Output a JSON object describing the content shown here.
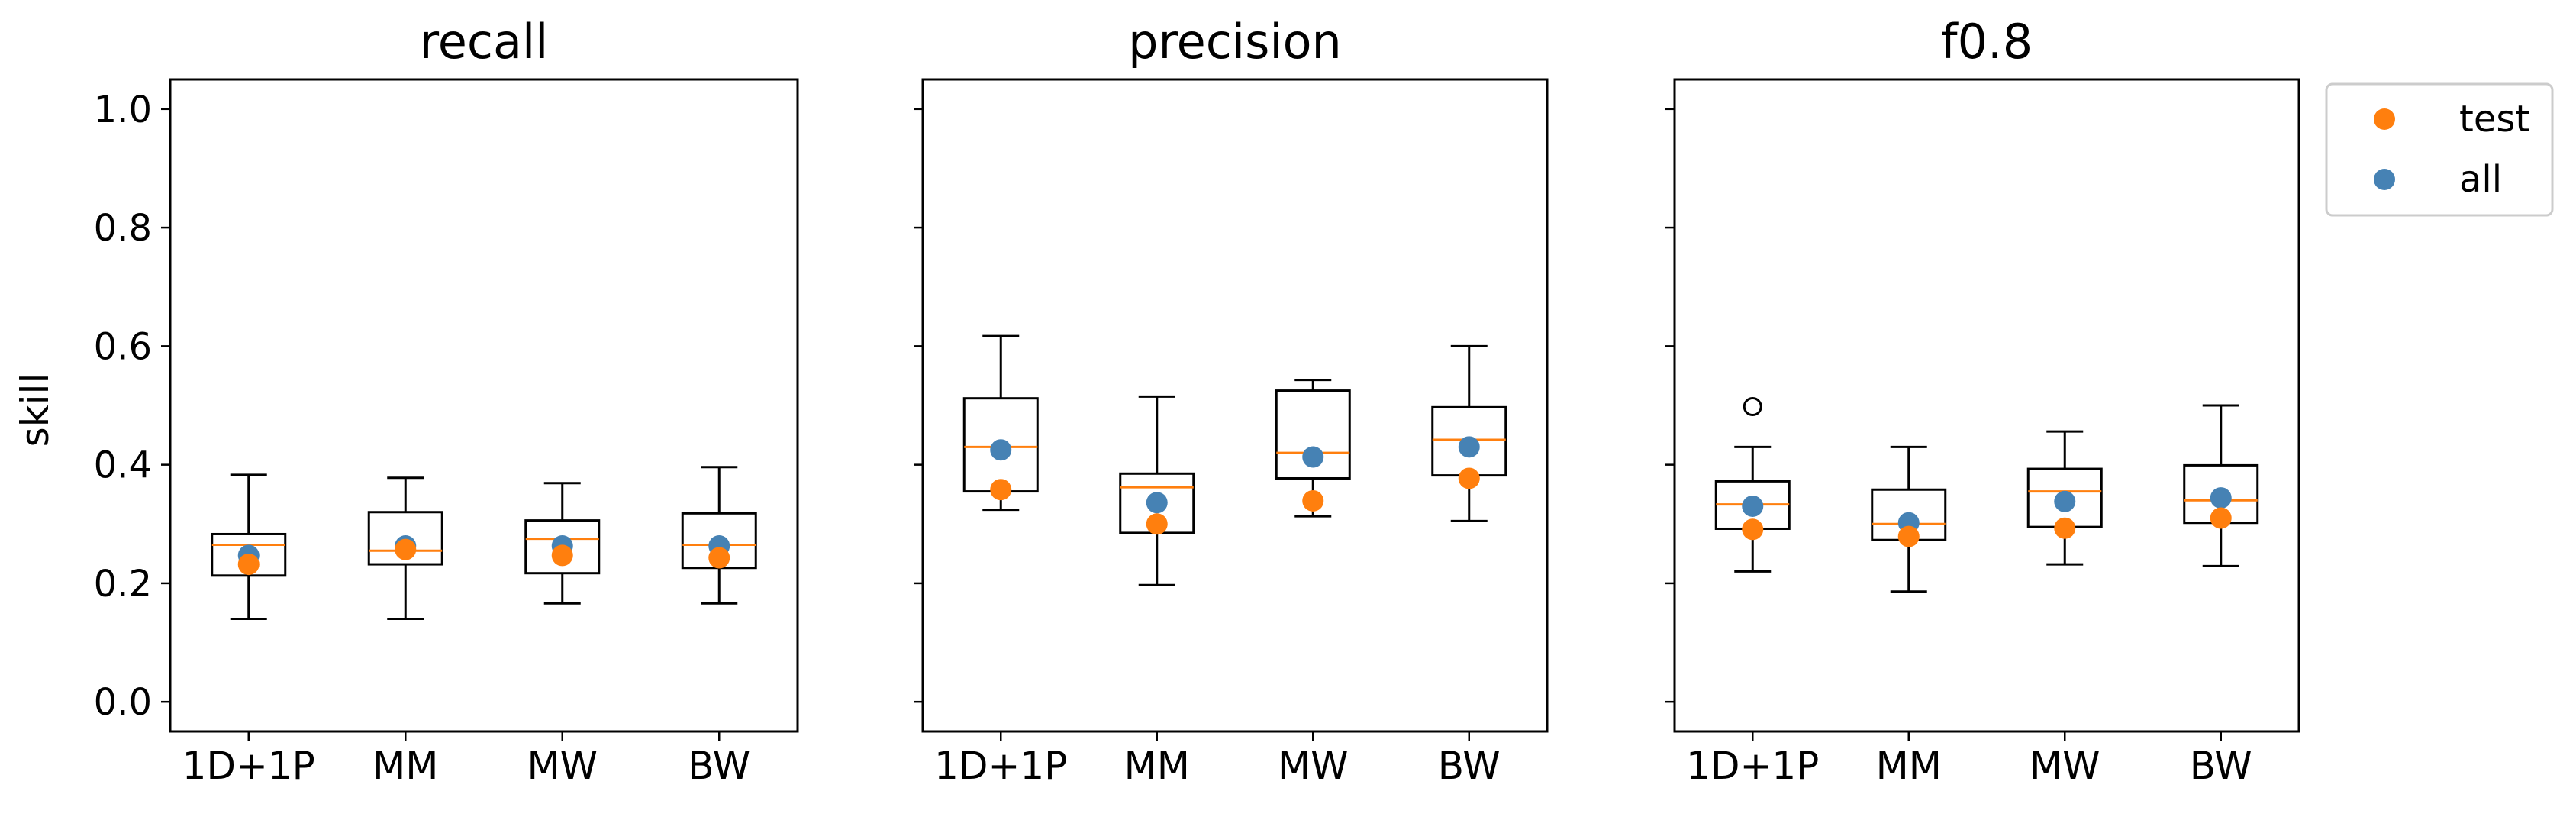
{
  "figure": {
    "ylabel": "skill",
    "legend": {
      "placement": "top-right outside",
      "entries": [
        {
          "label": "test",
          "color": "#ff7f0e"
        },
        {
          "label": "all",
          "color": "#4682b4"
        }
      ]
    },
    "yticks": [
      "0.0",
      "0.2",
      "0.4",
      "0.6",
      "0.8",
      "1.0"
    ]
  },
  "chart_data": [
    {
      "type": "box",
      "title": "recall",
      "ylabel": "skill",
      "ylim": [
        -0.05,
        1.05
      ],
      "categories": [
        "1D+1P",
        "MM",
        "MW",
        "BW"
      ],
      "boxes": [
        {
          "whislo": 0.14,
          "q1": 0.213,
          "med": 0.265,
          "q3": 0.283,
          "whishi": 0.383,
          "fliers": []
        },
        {
          "whislo": 0.14,
          "q1": 0.232,
          "med": 0.255,
          "q3": 0.32,
          "whishi": 0.378,
          "fliers": []
        },
        {
          "whislo": 0.166,
          "q1": 0.217,
          "med": 0.275,
          "q3": 0.306,
          "whishi": 0.369,
          "fliers": []
        },
        {
          "whislo": 0.166,
          "q1": 0.226,
          "med": 0.265,
          "q3": 0.318,
          "whishi": 0.396,
          "fliers": []
        }
      ],
      "series": [
        {
          "name": "test",
          "color": "#ff7f0e",
          "values": [
            0.232,
            0.257,
            0.247,
            0.243
          ]
        },
        {
          "name": "all",
          "color": "#4682b4",
          "values": [
            0.247,
            0.263,
            0.263,
            0.263
          ]
        }
      ]
    },
    {
      "type": "box",
      "title": "precision",
      "ylim": [
        -0.05,
        1.05
      ],
      "categories": [
        "1D+1P",
        "MM",
        "MW",
        "BW"
      ],
      "boxes": [
        {
          "whislo": 0.324,
          "q1": 0.355,
          "med": 0.43,
          "q3": 0.512,
          "whishi": 0.617,
          "fliers": []
        },
        {
          "whislo": 0.197,
          "q1": 0.285,
          "med": 0.362,
          "q3": 0.385,
          "whishi": 0.515,
          "fliers": []
        },
        {
          "whislo": 0.313,
          "q1": 0.377,
          "med": 0.42,
          "q3": 0.525,
          "whishi": 0.543,
          "fliers": []
        },
        {
          "whislo": 0.305,
          "q1": 0.382,
          "med": 0.442,
          "q3": 0.497,
          "whishi": 0.6,
          "fliers": []
        }
      ],
      "series": [
        {
          "name": "test",
          "color": "#ff7f0e",
          "values": [
            0.358,
            0.3,
            0.339,
            0.377
          ]
        },
        {
          "name": "all",
          "color": "#4682b4",
          "values": [
            0.425,
            0.336,
            0.413,
            0.43
          ]
        }
      ]
    },
    {
      "type": "box",
      "title": "f0.8",
      "ylim": [
        -0.05,
        1.05
      ],
      "categories": [
        "1D+1P",
        "MM",
        "MW",
        "BW"
      ],
      "boxes": [
        {
          "whislo": 0.22,
          "q1": 0.292,
          "med": 0.333,
          "q3": 0.372,
          "whishi": 0.43,
          "fliers": [
            0.498
          ]
        },
        {
          "whislo": 0.186,
          "q1": 0.273,
          "med": 0.3,
          "q3": 0.358,
          "whishi": 0.43,
          "fliers": []
        },
        {
          "whislo": 0.232,
          "q1": 0.295,
          "med": 0.355,
          "q3": 0.393,
          "whishi": 0.456,
          "fliers": []
        },
        {
          "whislo": 0.229,
          "q1": 0.302,
          "med": 0.34,
          "q3": 0.399,
          "whishi": 0.5,
          "fliers": []
        }
      ],
      "series": [
        {
          "name": "test",
          "color": "#ff7f0e",
          "values": [
            0.291,
            0.279,
            0.293,
            0.31
          ]
        },
        {
          "name": "all",
          "color": "#4682b4",
          "values": [
            0.33,
            0.302,
            0.338,
            0.344
          ]
        }
      ]
    }
  ]
}
